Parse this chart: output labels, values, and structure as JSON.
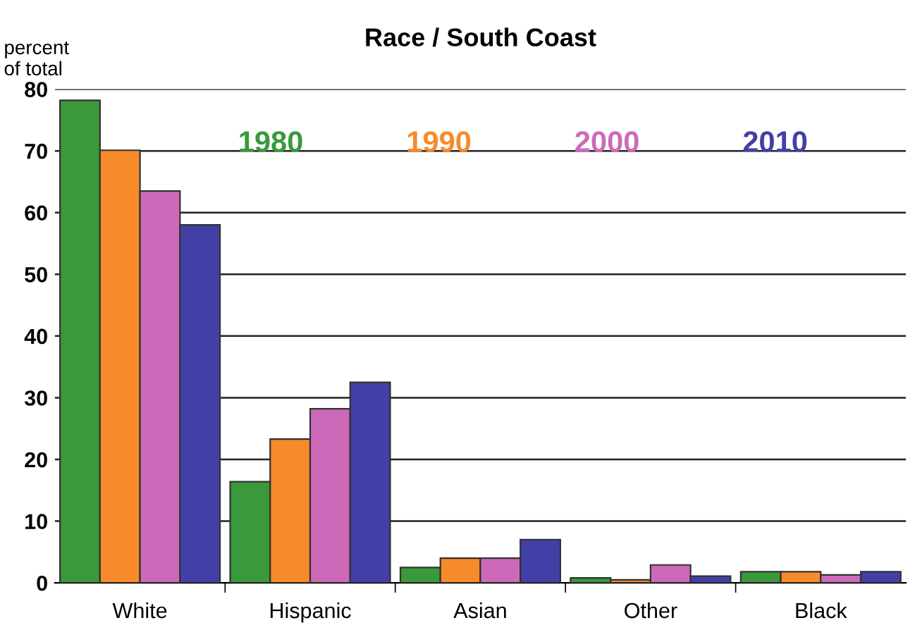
{
  "chart_data": {
    "type": "bar",
    "title": "Race / South Coast",
    "ylabel": "percent\nof total",
    "categories": [
      "White",
      "Hispanic",
      "Asian",
      "Other",
      "Black"
    ],
    "series": [
      {
        "name": "1980",
        "color": "#3a993a",
        "values": [
          78.2,
          16.4,
          2.5,
          0.8,
          1.8
        ]
      },
      {
        "name": "1990",
        "color": "#f78b2a",
        "values": [
          70.1,
          23.3,
          4.0,
          0.5,
          1.8
        ]
      },
      {
        "name": "2000",
        "color": "#cc6ab9",
        "values": [
          63.5,
          28.2,
          4.0,
          2.9,
          1.3
        ]
      },
      {
        "name": "2010",
        "color": "#4240a6",
        "values": [
          58.0,
          32.5,
          7.0,
          1.1,
          1.8
        ]
      }
    ],
    "ylim": [
      0,
      80
    ],
    "yticks": [
      0,
      10,
      20,
      30,
      40,
      50,
      60,
      70,
      80
    ],
    "grid": "y",
    "legend": "top"
  }
}
